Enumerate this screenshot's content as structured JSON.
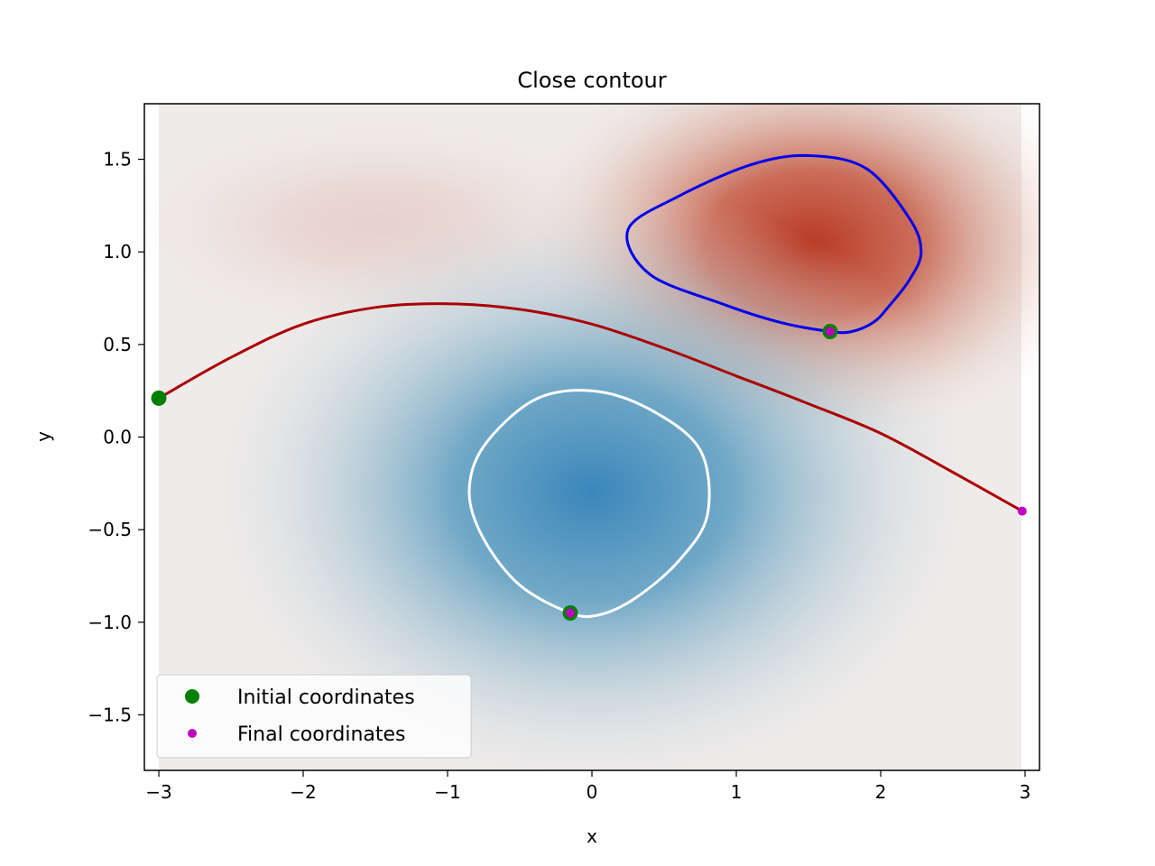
{
  "chart_data": {
    "type": "line",
    "title": "Close contour",
    "xlabel": "x",
    "ylabel": "y",
    "xlim": [
      -3.1,
      3.1
    ],
    "ylim": [
      -1.8,
      1.8
    ],
    "xticks": [
      -3,
      -2,
      -1,
      0,
      1,
      2,
      3
    ],
    "yticks": [
      -1.5,
      -1.0,
      -0.5,
      0.0,
      0.5,
      1.0,
      1.5
    ],
    "xtick_labels": [
      "−3",
      "−2",
      "−1",
      "0",
      "1",
      "2",
      "3"
    ],
    "ytick_labels": [
      "−1.5",
      "−1.0",
      "−0.5",
      "0.0",
      "0.5",
      "1.0",
      "1.5"
    ],
    "grid": false,
    "legend_position": "lower-left",
    "legend": [
      {
        "label": "Initial coordinates",
        "marker": "large-dot",
        "color": "#008000"
      },
      {
        "label": "Final coordinates",
        "marker": "small-dot",
        "color": "#bf00bf"
      }
    ],
    "background_field": {
      "type": "heatmap",
      "colormap": "diverging-blue-red",
      "positive_peak": [
        1.6,
        1.05
      ],
      "negative_peak": [
        0.0,
        -0.3
      ]
    },
    "series": [
      {
        "kind": "open-curve",
        "color": "#aa0000",
        "points": [
          [
            -3.0,
            0.21
          ],
          [
            -2.5,
            0.43
          ],
          [
            -2.0,
            0.61
          ],
          [
            -1.5,
            0.7
          ],
          [
            -1.0,
            0.72
          ],
          [
            -0.5,
            0.69
          ],
          [
            0.0,
            0.61
          ],
          [
            0.5,
            0.48
          ],
          [
            1.0,
            0.33
          ],
          [
            1.5,
            0.18
          ],
          [
            2.0,
            0.02
          ],
          [
            2.5,
            -0.19
          ],
          [
            2.98,
            -0.4
          ]
        ]
      },
      {
        "kind": "closed-curve",
        "color": "#0000ee",
        "points": [
          [
            1.65,
            0.57
          ],
          [
            1.8,
            0.57
          ],
          [
            1.95,
            0.62
          ],
          [
            2.05,
            0.7
          ],
          [
            2.2,
            0.85
          ],
          [
            2.28,
            1.0
          ],
          [
            2.2,
            1.18
          ],
          [
            1.9,
            1.45
          ],
          [
            1.5,
            1.52
          ],
          [
            1.1,
            1.47
          ],
          [
            0.6,
            1.3
          ],
          [
            0.25,
            1.12
          ],
          [
            0.4,
            0.88
          ],
          [
            0.9,
            0.72
          ],
          [
            1.3,
            0.62
          ],
          [
            1.65,
            0.57
          ]
        ]
      },
      {
        "kind": "closed-curve",
        "color": "#ffffff",
        "points": [
          [
            -0.15,
            -0.95
          ],
          [
            0.05,
            -0.96
          ],
          [
            0.3,
            -0.87
          ],
          [
            0.6,
            -0.67
          ],
          [
            0.8,
            -0.42
          ],
          [
            0.75,
            -0.07
          ],
          [
            0.4,
            0.15
          ],
          [
            0.0,
            0.25
          ],
          [
            -0.4,
            0.2
          ],
          [
            -0.75,
            -0.05
          ],
          [
            -0.85,
            -0.3
          ],
          [
            -0.75,
            -0.55
          ],
          [
            -0.5,
            -0.8
          ],
          [
            -0.15,
            -0.95
          ]
        ]
      }
    ],
    "initial_points": [
      [
        -3.0,
        0.21
      ],
      [
        1.65,
        0.57
      ],
      [
        -0.15,
        -0.95
      ]
    ],
    "final_points": [
      [
        2.98,
        -0.4
      ],
      [
        1.65,
        0.57
      ],
      [
        -0.15,
        -0.95
      ]
    ]
  }
}
